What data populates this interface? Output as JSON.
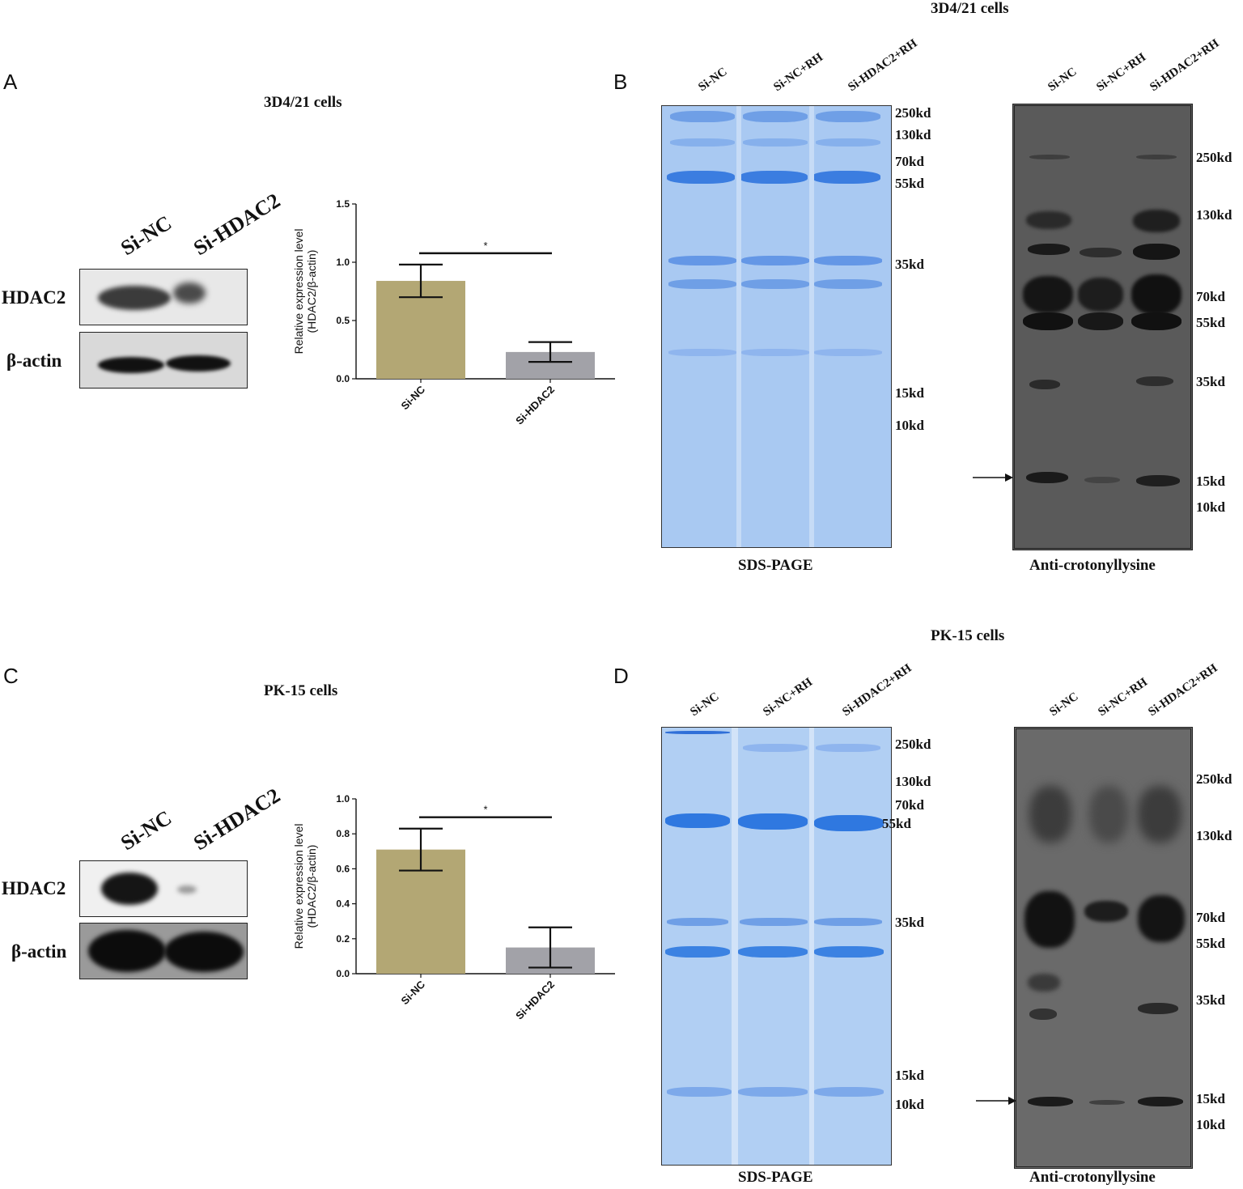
{
  "panel_a": {
    "letter": "A",
    "title": "3D4/21 cells",
    "blot_lanes": [
      "Si-NC",
      "Si-HDAC2"
    ],
    "blot_rows": [
      "HDAC2",
      "β-actin"
    ]
  },
  "panel_b": {
    "letter": "B",
    "title": "3D4/21 cells",
    "gel_lanes": [
      "Si-NC",
      "Si-NC+RH",
      "Si-HDAC2+RH"
    ],
    "gel_markers": [
      "250kd",
      "130kd",
      "70kd",
      "55kd",
      "35kd",
      "15kd",
      "10kd"
    ],
    "gel_caption": "SDS-PAGE",
    "wb_lanes": [
      "Si-NC",
      "Si-NC+RH",
      "Si-HDAC2+RH"
    ],
    "wb_markers": [
      "250kd",
      "130kd",
      "70kd",
      "55kd",
      "35kd",
      "15kd",
      "10kd"
    ],
    "wb_caption": "Anti-crotonyllysine"
  },
  "panel_c": {
    "letter": "C",
    "title": "PK-15 cells",
    "blot_lanes": [
      "Si-NC",
      "Si-HDAC2"
    ],
    "blot_rows": [
      "HDAC2",
      "β-actin"
    ]
  },
  "panel_d": {
    "letter": "D",
    "title": "PK-15 cells",
    "gel_lanes": [
      "Si-NC",
      "Si-NC+RH",
      "Si-HDAC2+RH"
    ],
    "gel_markers": [
      "250kd",
      "130kd",
      "70kd",
      "55kd",
      "35kd",
      "15kd",
      "10kd"
    ],
    "gel_caption": "SDS-PAGE",
    "wb_lanes": [
      "Si-NC",
      "Si-NC+RH",
      "Si-HDAC2+RH"
    ],
    "wb_markers": [
      "250kd",
      "130kd",
      "70kd",
      "55kd",
      "35kd",
      "15kd",
      "10kd"
    ],
    "wb_caption": "Anti-crotonyllysine"
  },
  "chart_data": [
    {
      "type": "bar",
      "categories": [
        "Si-NC",
        "Si-HDAC2"
      ],
      "values": [
        0.84,
        0.23
      ],
      "errors": [
        0.14,
        0.085
      ],
      "ylabel": "Relative expression level\n(HDAC2/β-actin)",
      "yticks": [
        "0.0",
        "0.5",
        "1.0",
        "1.5"
      ],
      "ylim": [
        0,
        1.5
      ],
      "significance": "*",
      "colors": [
        "#b3a774",
        "#a2a2a8"
      ]
    },
    {
      "type": "bar",
      "categories": [
        "Si-NC",
        "Si-HDAC2"
      ],
      "values": [
        0.71,
        0.15
      ],
      "errors": [
        0.12,
        0.115
      ],
      "ylabel": "Relative expression level\n(HDAC2/β-actin)",
      "yticks": [
        "0.0",
        "0.2",
        "0.4",
        "0.6",
        "0.8",
        "1.0"
      ],
      "ylim": [
        0,
        1.0
      ],
      "significance": "*",
      "colors": [
        "#b3a774",
        "#a2a2a8"
      ]
    }
  ]
}
